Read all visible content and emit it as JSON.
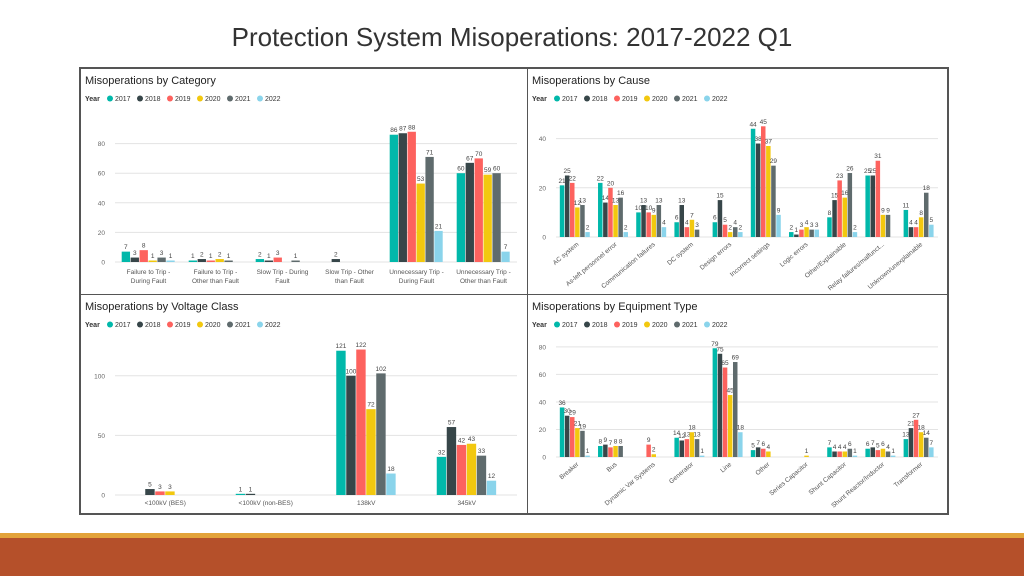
{
  "page": {
    "title": "Protection System Misoperations:  2017-2022 Q1"
  },
  "legend": {
    "label": "Year",
    "years": [
      "2017",
      "2018",
      "2019",
      "2020",
      "2021",
      "2022"
    ],
    "colors": [
      "#01b8aa",
      "#374649",
      "#fd625e",
      "#f2c80f",
      "#5f6b6d",
      "#8ad4eb"
    ]
  },
  "chart_data": [
    {
      "type": "bar",
      "title": "Misoperations by Category",
      "categories": [
        "Failure to Trip - During Fault",
        "Failure to Trip - Other than Fault",
        "Slow Trip - During Fault",
        "Slow Trip - Other than Fault",
        "Unnecessary Trip - During Fault",
        "Unnecessary Trip - Other than Fault"
      ],
      "category_lines": [
        [
          "Failure to Trip -",
          "During Fault"
        ],
        [
          "Failure to Trip -",
          "Other than Fault"
        ],
        [
          "Slow Trip - During",
          "Fault"
        ],
        [
          "Slow Trip - Other",
          "than Fault"
        ],
        [
          "Unnecessary Trip -",
          "During Fault"
        ],
        [
          "Unnecessary Trip -",
          "Other than Fault"
        ]
      ],
      "series": [
        {
          "name": "2017",
          "values": [
            7,
            1,
            2,
            null,
            86,
            60
          ]
        },
        {
          "name": "2018",
          "values": [
            3,
            2,
            1,
            2,
            87,
            67
          ]
        },
        {
          "name": "2019",
          "values": [
            8,
            1,
            3,
            null,
            88,
            70
          ]
        },
        {
          "name": "2020",
          "values": [
            1,
            2,
            null,
            null,
            53,
            59
          ]
        },
        {
          "name": "2021",
          "values": [
            3,
            1,
            1,
            null,
            71,
            60
          ]
        },
        {
          "name": "2022",
          "values": [
            1,
            null,
            null,
            null,
            21,
            7
          ]
        }
      ],
      "yticks": [
        0,
        20,
        40,
        60,
        80
      ],
      "ylim": [
        0,
        100
      ],
      "grid": true,
      "legend_position": "top-left",
      "rotate_labels": false
    },
    {
      "type": "bar",
      "title": "Misoperations by Cause",
      "categories": [
        "AC system",
        "As-left personnel error",
        "Communication failures",
        "DC system",
        "Design errors",
        "Incorrect settings",
        "Logic errors",
        "Other/Explainable",
        "Relay failures/malfunct...",
        "Unknown/unexplainable"
      ],
      "series": [
        {
          "name": "2017",
          "values": [
            21,
            22,
            10,
            6,
            6,
            44,
            2,
            8,
            25,
            11
          ]
        },
        {
          "name": "2018",
          "values": [
            25,
            14,
            13,
            13,
            15,
            38,
            1,
            15,
            25,
            4
          ]
        },
        {
          "name": "2019",
          "values": [
            22,
            20,
            10,
            4,
            5,
            45,
            3,
            23,
            31,
            4
          ]
        },
        {
          "name": "2020",
          "values": [
            12,
            13,
            9,
            7,
            2,
            37,
            4,
            16,
            9,
            8
          ]
        },
        {
          "name": "2021",
          "values": [
            13,
            16,
            13,
            3,
            4,
            29,
            3,
            26,
            9,
            18
          ]
        },
        {
          "name": "2022",
          "values": [
            2,
            2,
            4,
            null,
            2,
            9,
            3,
            2,
            null,
            5
          ]
        }
      ],
      "yticks": [
        0,
        20,
        40
      ],
      "ylim": [
        0,
        50
      ],
      "grid": true,
      "legend_position": "top-left",
      "rotate_labels": true
    },
    {
      "type": "bar",
      "title": "Misoperations by Voltage Class",
      "categories": [
        "<100kV (BES)",
        "<100kV (non-BES)",
        "138kV",
        "345kV"
      ],
      "series": [
        {
          "name": "2017",
          "values": [
            null,
            1,
            121,
            32
          ]
        },
        {
          "name": "2018",
          "values": [
            5,
            1,
            100,
            57
          ]
        },
        {
          "name": "2019",
          "values": [
            3,
            null,
            122,
            42
          ]
        },
        {
          "name": "2020",
          "values": [
            3,
            null,
            72,
            43
          ]
        },
        {
          "name": "2021",
          "values": [
            null,
            null,
            102,
            33
          ]
        },
        {
          "name": "2022",
          "values": [
            null,
            null,
            18,
            12
          ]
        }
      ],
      "yticks": [
        0,
        50,
        100
      ],
      "ylim": [
        0,
        130
      ],
      "grid": true,
      "legend_position": "top-left",
      "rotate_labels": false
    },
    {
      "type": "bar",
      "title": "Misoperations by Equipment Type",
      "categories": [
        "Breaker",
        "Bus",
        "Dynamic Var Systems",
        "Generator",
        "Line",
        "Other",
        "Series Capacitor",
        "Shunt Capacitor",
        "Shunt Reactor/Inductor",
        "Transformer"
      ],
      "series": [
        {
          "name": "2017",
          "values": [
            36,
            8,
            null,
            14,
            79,
            5,
            null,
            7,
            6,
            13
          ]
        },
        {
          "name": "2018",
          "values": [
            30,
            9,
            null,
            12,
            75,
            7,
            null,
            4,
            7,
            21
          ]
        },
        {
          "name": "2019",
          "values": [
            29,
            7,
            9,
            13,
            65,
            6,
            null,
            4,
            5,
            27
          ]
        },
        {
          "name": "2020",
          "values": [
            21,
            8,
            2,
            18,
            45,
            4,
            1,
            4,
            6,
            18
          ]
        },
        {
          "name": "2021",
          "values": [
            19,
            8,
            null,
            13,
            69,
            null,
            null,
            6,
            4,
            14
          ]
        },
        {
          "name": "2022",
          "values": [
            1,
            null,
            null,
            1,
            18,
            null,
            null,
            1,
            1,
            7
          ]
        }
      ],
      "yticks": [
        0,
        20,
        40,
        60,
        80
      ],
      "ylim": [
        0,
        85
      ],
      "grid": true,
      "legend_position": "top-left",
      "rotate_labels": true
    }
  ]
}
